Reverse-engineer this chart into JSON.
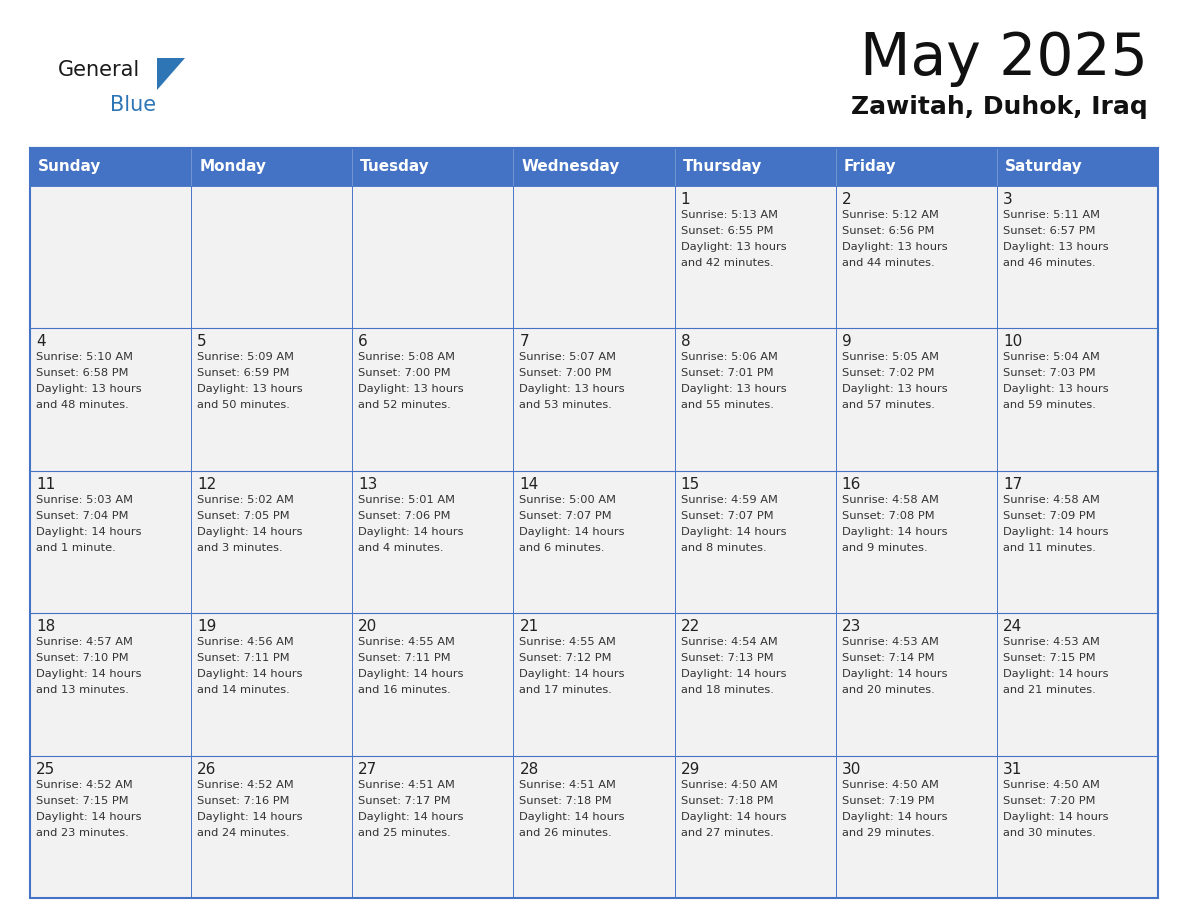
{
  "title": "May 2025",
  "subtitle": "Zawitah, Duhok, Iraq",
  "days_of_week": [
    "Sunday",
    "Monday",
    "Tuesday",
    "Wednesday",
    "Thursday",
    "Friday",
    "Saturday"
  ],
  "header_bg": "#4472C4",
  "header_text": "#FFFFFF",
  "cell_bg": "#F2F2F2",
  "border_color": "#4472C4",
  "cell_border_color": "#4472C4",
  "title_color": "#111111",
  "subtitle_color": "#111111",
  "text_color": "#333333",
  "logo_black": "#1a1a1a",
  "logo_blue": "#2E75B6",
  "calendar_data": [
    [
      {
        "day": "",
        "sunrise": "",
        "sunset": "",
        "daylight": ""
      },
      {
        "day": "",
        "sunrise": "",
        "sunset": "",
        "daylight": ""
      },
      {
        "day": "",
        "sunrise": "",
        "sunset": "",
        "daylight": ""
      },
      {
        "day": "",
        "sunrise": "",
        "sunset": "",
        "daylight": ""
      },
      {
        "day": "1",
        "sunrise": "5:13 AM",
        "sunset": "6:55 PM",
        "daylight": "13 hours and 42 minutes."
      },
      {
        "day": "2",
        "sunrise": "5:12 AM",
        "sunset": "6:56 PM",
        "daylight": "13 hours and 44 minutes."
      },
      {
        "day": "3",
        "sunrise": "5:11 AM",
        "sunset": "6:57 PM",
        "daylight": "13 hours and 46 minutes."
      }
    ],
    [
      {
        "day": "4",
        "sunrise": "5:10 AM",
        "sunset": "6:58 PM",
        "daylight": "13 hours and 48 minutes."
      },
      {
        "day": "5",
        "sunrise": "5:09 AM",
        "sunset": "6:59 PM",
        "daylight": "13 hours and 50 minutes."
      },
      {
        "day": "6",
        "sunrise": "5:08 AM",
        "sunset": "7:00 PM",
        "daylight": "13 hours and 52 minutes."
      },
      {
        "day": "7",
        "sunrise": "5:07 AM",
        "sunset": "7:00 PM",
        "daylight": "13 hours and 53 minutes."
      },
      {
        "day": "8",
        "sunrise": "5:06 AM",
        "sunset": "7:01 PM",
        "daylight": "13 hours and 55 minutes."
      },
      {
        "day": "9",
        "sunrise": "5:05 AM",
        "sunset": "7:02 PM",
        "daylight": "13 hours and 57 minutes."
      },
      {
        "day": "10",
        "sunrise": "5:04 AM",
        "sunset": "7:03 PM",
        "daylight": "13 hours and 59 minutes."
      }
    ],
    [
      {
        "day": "11",
        "sunrise": "5:03 AM",
        "sunset": "7:04 PM",
        "daylight": "14 hours and 1 minute."
      },
      {
        "day": "12",
        "sunrise": "5:02 AM",
        "sunset": "7:05 PM",
        "daylight": "14 hours and 3 minutes."
      },
      {
        "day": "13",
        "sunrise": "5:01 AM",
        "sunset": "7:06 PM",
        "daylight": "14 hours and 4 minutes."
      },
      {
        "day": "14",
        "sunrise": "5:00 AM",
        "sunset": "7:07 PM",
        "daylight": "14 hours and 6 minutes."
      },
      {
        "day": "15",
        "sunrise": "4:59 AM",
        "sunset": "7:07 PM",
        "daylight": "14 hours and 8 minutes."
      },
      {
        "day": "16",
        "sunrise": "4:58 AM",
        "sunset": "7:08 PM",
        "daylight": "14 hours and 9 minutes."
      },
      {
        "day": "17",
        "sunrise": "4:58 AM",
        "sunset": "7:09 PM",
        "daylight": "14 hours and 11 minutes."
      }
    ],
    [
      {
        "day": "18",
        "sunrise": "4:57 AM",
        "sunset": "7:10 PM",
        "daylight": "14 hours and 13 minutes."
      },
      {
        "day": "19",
        "sunrise": "4:56 AM",
        "sunset": "7:11 PM",
        "daylight": "14 hours and 14 minutes."
      },
      {
        "day": "20",
        "sunrise": "4:55 AM",
        "sunset": "7:11 PM",
        "daylight": "14 hours and 16 minutes."
      },
      {
        "day": "21",
        "sunrise": "4:55 AM",
        "sunset": "7:12 PM",
        "daylight": "14 hours and 17 minutes."
      },
      {
        "day": "22",
        "sunrise": "4:54 AM",
        "sunset": "7:13 PM",
        "daylight": "14 hours and 18 minutes."
      },
      {
        "day": "23",
        "sunrise": "4:53 AM",
        "sunset": "7:14 PM",
        "daylight": "14 hours and 20 minutes."
      },
      {
        "day": "24",
        "sunrise": "4:53 AM",
        "sunset": "7:15 PM",
        "daylight": "14 hours and 21 minutes."
      }
    ],
    [
      {
        "day": "25",
        "sunrise": "4:52 AM",
        "sunset": "7:15 PM",
        "daylight": "14 hours and 23 minutes."
      },
      {
        "day": "26",
        "sunrise": "4:52 AM",
        "sunset": "7:16 PM",
        "daylight": "14 hours and 24 minutes."
      },
      {
        "day": "27",
        "sunrise": "4:51 AM",
        "sunset": "7:17 PM",
        "daylight": "14 hours and 25 minutes."
      },
      {
        "day": "28",
        "sunrise": "4:51 AM",
        "sunset": "7:18 PM",
        "daylight": "14 hours and 26 minutes."
      },
      {
        "day": "29",
        "sunrise": "4:50 AM",
        "sunset": "7:18 PM",
        "daylight": "14 hours and 27 minutes."
      },
      {
        "day": "30",
        "sunrise": "4:50 AM",
        "sunset": "7:19 PM",
        "daylight": "14 hours and 29 minutes."
      },
      {
        "day": "31",
        "sunrise": "4:50 AM",
        "sunset": "7:20 PM",
        "daylight": "14 hours and 30 minutes."
      }
    ]
  ]
}
